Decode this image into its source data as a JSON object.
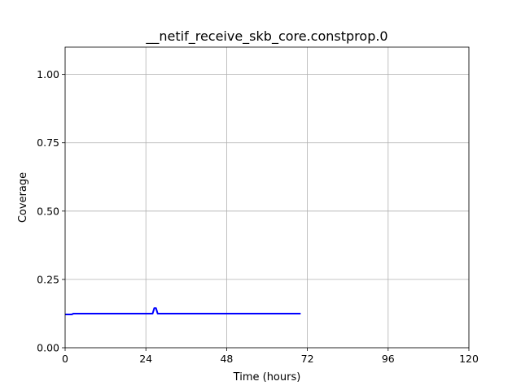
{
  "chart_data": {
    "type": "line",
    "title": "__netif_receive_skb_core.constprop.0",
    "xlabel": "Time (hours)",
    "ylabel": "Coverage",
    "xlim": [
      0,
      120
    ],
    "ylim": [
      0,
      1.1
    ],
    "xticks": [
      0,
      24,
      48,
      72,
      96,
      120
    ],
    "xtick_labels": [
      "0",
      "24",
      "48",
      "72",
      "96",
      "120"
    ],
    "yticks": [
      0,
      0.25,
      0.5,
      0.75,
      1.0
    ],
    "ytick_labels": [
      "0.00",
      "0.25",
      "0.50",
      "0.75",
      "1.00"
    ],
    "grid": true,
    "legend": "none",
    "series": [
      {
        "color": "#0000ff",
        "x": [
          0,
          2,
          2.5,
          3,
          10,
          20,
          26,
          26.5,
          27,
          27.5,
          28,
          40,
          50,
          60,
          70
        ],
        "y": [
          0.122,
          0.122,
          0.125,
          0.125,
          0.125,
          0.125,
          0.125,
          0.145,
          0.145,
          0.125,
          0.125,
          0.125,
          0.125,
          0.125,
          0.125
        ]
      }
    ]
  }
}
